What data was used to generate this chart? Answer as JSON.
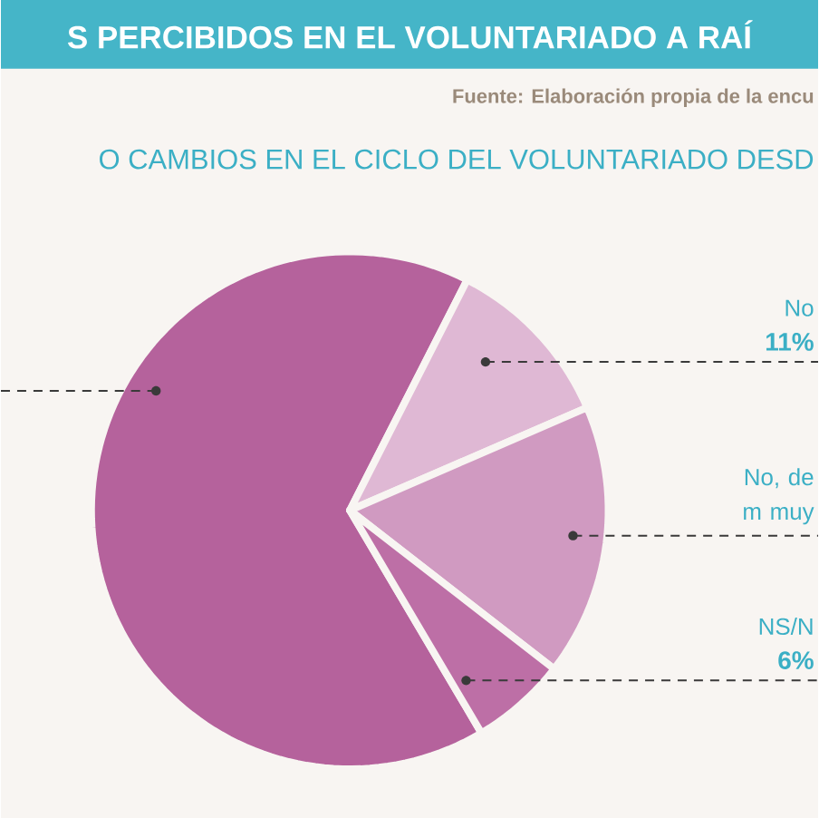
{
  "chart_data": {
    "type": "pie",
    "title": "S PERCIBIDOS EN EL VOLUNTARIADO A RAÍ",
    "subtitle": "O CAMBIOS EN EL CICLO DEL VOLUNTARIADO DESD",
    "annotations": [
      "Fuente: Elaboración propia de la encu"
    ],
    "categories": [
      null,
      "No",
      "No, de m muy",
      "NS/N"
    ],
    "values": [
      66,
      11,
      17,
      6
    ],
    "value_labels": [
      null,
      "11%",
      null,
      "6%"
    ],
    "colors": [
      "#b5629c",
      "#dfb8d4",
      "#d09ac1",
      "#bd6fa6"
    ]
  }
}
